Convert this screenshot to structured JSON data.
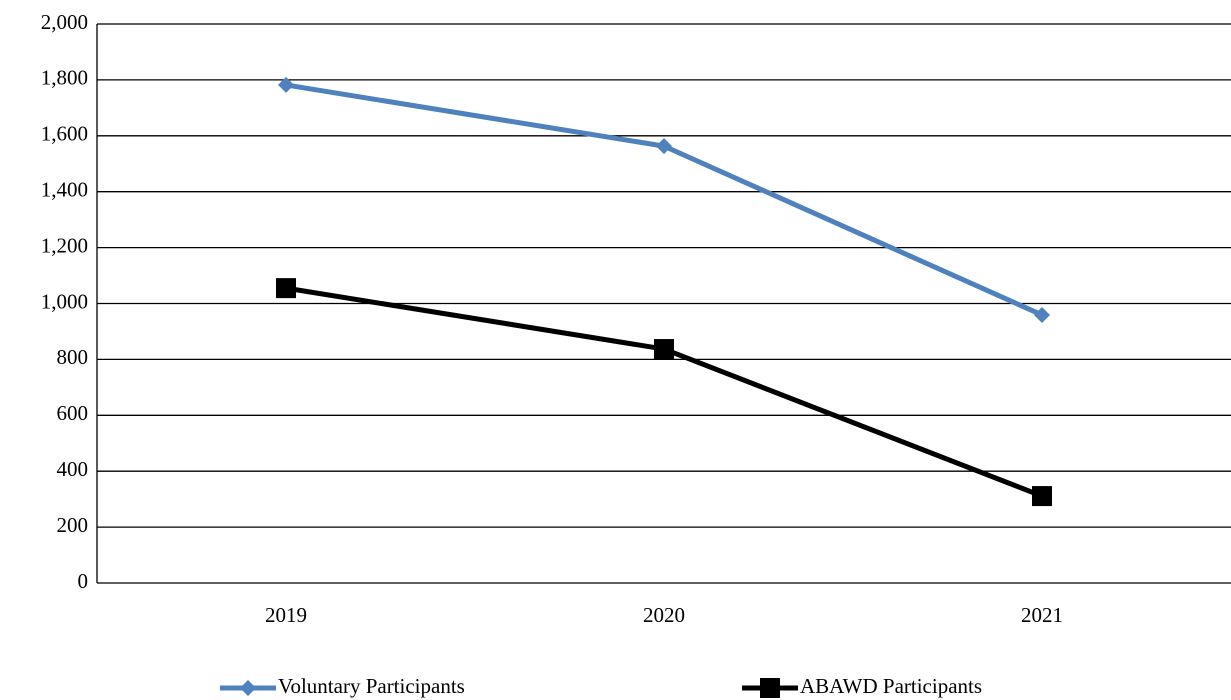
{
  "chart_data": {
    "type": "line",
    "categories": [
      "2019",
      "2020",
      "2021"
    ],
    "series": [
      {
        "name": "Voluntary Participants",
        "color": "#4f81bd",
        "marker": "diamond",
        "values": [
          1782,
          1563,
          959
        ]
      },
      {
        "name": "ABAWD Participants",
        "color": "#000000",
        "marker": "square",
        "values": [
          1055,
          837,
          311
        ]
      }
    ],
    "ylim": [
      0,
      2000
    ],
    "yticks": [
      0,
      200,
      400,
      600,
      800,
      {
        "value": 1000,
        "label": "1,000"
      },
      {
        "value": 1200,
        "label": "1,200"
      },
      {
        "value": 1400,
        "label": "1,400"
      },
      {
        "value": 1600,
        "label": "1,600"
      },
      {
        "value": 1800,
        "label": "1,800"
      },
      {
        "value": 2000,
        "label": "2,000"
      }
    ],
    "grid": true,
    "legend": "bottom"
  }
}
